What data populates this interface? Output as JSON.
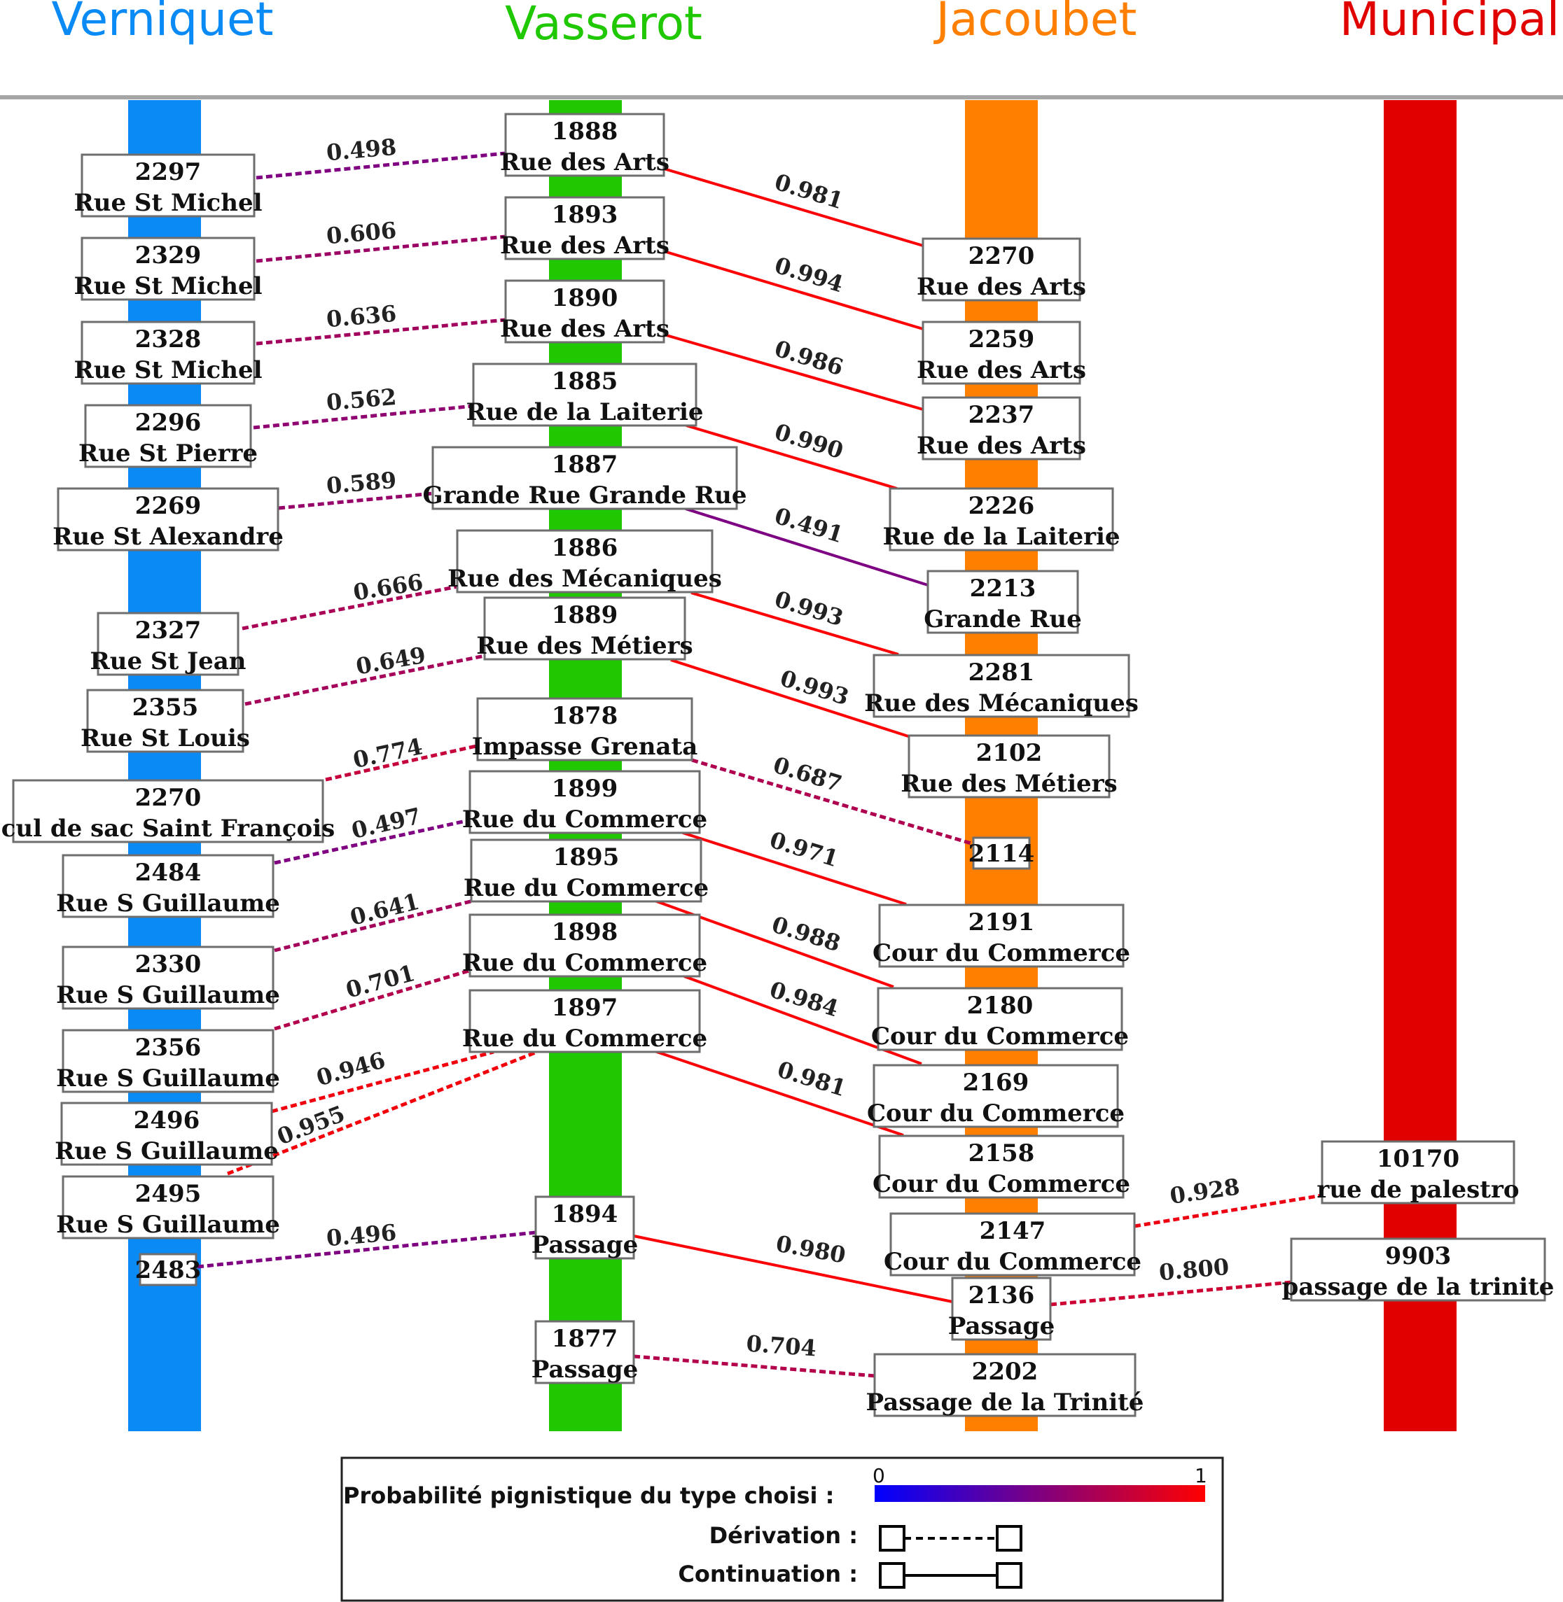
{
  "columns": [
    {
      "id": "verniquet",
      "label": "Verniquet",
      "color": "#0a8af5"
    },
    {
      "id": "vasserot",
      "label": "Vasserot",
      "color": "#1fc800"
    },
    {
      "id": "jacoubet",
      "label": "Jacoubet",
      "color": "#ff7f00"
    },
    {
      "id": "municipal",
      "label": "Municipal",
      "color": "#e00000"
    }
  ],
  "nodes": [
    {
      "id": "v2297",
      "column": "verniquet",
      "number": "2297",
      "name": "Rue St Michel"
    },
    {
      "id": "v2329",
      "column": "verniquet",
      "number": "2329",
      "name": "Rue St Michel"
    },
    {
      "id": "v2328",
      "column": "verniquet",
      "number": "2328",
      "name": "Rue St Michel"
    },
    {
      "id": "v2296",
      "column": "verniquet",
      "number": "2296",
      "name": "Rue St Pierre"
    },
    {
      "id": "v2269",
      "column": "verniquet",
      "number": "2269",
      "name": "Rue St Alexandre"
    },
    {
      "id": "v2327",
      "column": "verniquet",
      "number": "2327",
      "name": "Rue St Jean"
    },
    {
      "id": "v2355",
      "column": "verniquet",
      "number": "2355",
      "name": "Rue St Louis"
    },
    {
      "id": "v2270",
      "column": "verniquet",
      "number": "2270",
      "name": "cul de sac Saint François"
    },
    {
      "id": "v2484",
      "column": "verniquet",
      "number": "2484",
      "name": "Rue S Guillaume"
    },
    {
      "id": "v2330",
      "column": "verniquet",
      "number": "2330",
      "name": "Rue S Guillaume"
    },
    {
      "id": "v2356",
      "column": "verniquet",
      "number": "2356",
      "name": "Rue S Guillaume"
    },
    {
      "id": "v2496",
      "column": "verniquet",
      "number": "2496",
      "name": "Rue S Guillaume"
    },
    {
      "id": "v2495",
      "column": "verniquet",
      "number": "2495",
      "name": "Rue S Guillaume"
    },
    {
      "id": "v2483",
      "column": "verniquet",
      "number": "2483",
      "name": ""
    },
    {
      "id": "s1888",
      "column": "vasserot",
      "number": "1888",
      "name": "Rue des Arts"
    },
    {
      "id": "s1893",
      "column": "vasserot",
      "number": "1893",
      "name": "Rue des Arts"
    },
    {
      "id": "s1890",
      "column": "vasserot",
      "number": "1890",
      "name": "Rue des Arts"
    },
    {
      "id": "s1885",
      "column": "vasserot",
      "number": "1885",
      "name": "Rue de la Laiterie"
    },
    {
      "id": "s1887",
      "column": "vasserot",
      "number": "1887",
      "name": "Grande Rue Grande Rue"
    },
    {
      "id": "s1886",
      "column": "vasserot",
      "number": "1886",
      "name": "Rue des Mécaniques"
    },
    {
      "id": "s1889",
      "column": "vasserot",
      "number": "1889",
      "name": "Rue des Métiers"
    },
    {
      "id": "s1878",
      "column": "vasserot",
      "number": "1878",
      "name": "Impasse Grenata"
    },
    {
      "id": "s1899",
      "column": "vasserot",
      "number": "1899",
      "name": "Rue du Commerce"
    },
    {
      "id": "s1895",
      "column": "vasserot",
      "number": "1895",
      "name": "Rue du Commerce"
    },
    {
      "id": "s1898",
      "column": "vasserot",
      "number": "1898",
      "name": "Rue du Commerce"
    },
    {
      "id": "s1897",
      "column": "vasserot",
      "number": "1897",
      "name": "Rue du Commerce"
    },
    {
      "id": "s1894",
      "column": "vasserot",
      "number": "1894",
      "name": "Passage"
    },
    {
      "id": "s1877",
      "column": "vasserot",
      "number": "1877",
      "name": "Passage"
    },
    {
      "id": "j2270",
      "column": "jacoubet",
      "number": "2270",
      "name": "Rue des Arts"
    },
    {
      "id": "j2259",
      "column": "jacoubet",
      "number": "2259",
      "name": "Rue des Arts"
    },
    {
      "id": "j2237",
      "column": "jacoubet",
      "number": "2237",
      "name": "Rue des Arts"
    },
    {
      "id": "j2226",
      "column": "jacoubet",
      "number": "2226",
      "name": "Rue de la Laiterie"
    },
    {
      "id": "j2213",
      "column": "jacoubet",
      "number": "2213",
      "name": "Grande Rue"
    },
    {
      "id": "j2281",
      "column": "jacoubet",
      "number": "2281",
      "name": "Rue des Mécaniques"
    },
    {
      "id": "j2102",
      "column": "jacoubet",
      "number": "2102",
      "name": "Rue des Métiers"
    },
    {
      "id": "j2114",
      "column": "jacoubet",
      "number": "2114",
      "name": ""
    },
    {
      "id": "j2191",
      "column": "jacoubet",
      "number": "2191",
      "name": "Cour du Commerce"
    },
    {
      "id": "j2180",
      "column": "jacoubet",
      "number": "2180",
      "name": "Cour du Commerce"
    },
    {
      "id": "j2169",
      "column": "jacoubet",
      "number": "2169",
      "name": "Cour du Commerce"
    },
    {
      "id": "j2158",
      "column": "jacoubet",
      "number": "2158",
      "name": "Cour du Commerce"
    },
    {
      "id": "j2147",
      "column": "jacoubet",
      "number": "2147",
      "name": "Cour du Commerce"
    },
    {
      "id": "j2136",
      "column": "jacoubet",
      "number": "2136",
      "name": "Passage"
    },
    {
      "id": "j2202",
      "column": "jacoubet",
      "number": "2202",
      "name": "Passage de la Trinité"
    },
    {
      "id": "m10170",
      "column": "municipal",
      "number": "10170",
      "name": "rue de palestro"
    },
    {
      "id": "m9903",
      "column": "municipal",
      "number": "9903",
      "name": "passage de la trinite"
    }
  ],
  "edges": [
    {
      "from": "v2297",
      "to": "s1888",
      "value": 0.498,
      "label": "0.498",
      "type": "derivation"
    },
    {
      "from": "v2329",
      "to": "s1893",
      "value": 0.606,
      "label": "0.606",
      "type": "derivation"
    },
    {
      "from": "v2328",
      "to": "s1890",
      "value": 0.636,
      "label": "0.636",
      "type": "derivation"
    },
    {
      "from": "v2296",
      "to": "s1885",
      "value": 0.562,
      "label": "0.562",
      "type": "derivation"
    },
    {
      "from": "v2269",
      "to": "s1887",
      "value": 0.589,
      "label": "0.589",
      "type": "derivation"
    },
    {
      "from": "v2327",
      "to": "s1886",
      "value": 0.666,
      "label": "0.666",
      "type": "derivation"
    },
    {
      "from": "v2355",
      "to": "s1889",
      "value": 0.649,
      "label": "0.649",
      "type": "derivation"
    },
    {
      "from": "v2270",
      "to": "s1878",
      "value": 0.774,
      "label": "0.774",
      "type": "derivation"
    },
    {
      "from": "v2484",
      "to": "s1899",
      "value": 0.497,
      "label": "0.497",
      "type": "derivation"
    },
    {
      "from": "v2330",
      "to": "s1895",
      "value": 0.641,
      "label": "0.641",
      "type": "derivation"
    },
    {
      "from": "v2356",
      "to": "s1898",
      "value": 0.701,
      "label": "0.701",
      "type": "derivation"
    },
    {
      "from": "v2496",
      "to": "s1897",
      "value": 0.946,
      "label": "0.946",
      "type": "derivation"
    },
    {
      "from": "v2495",
      "to": "s1897",
      "value": 0.955,
      "label": "0.955",
      "type": "derivation"
    },
    {
      "from": "v2483",
      "to": "s1894",
      "value": 0.496,
      "label": "0.496",
      "type": "derivation"
    },
    {
      "from": "s1888",
      "to": "j2270",
      "value": 0.981,
      "label": "0.981",
      "type": "continuation"
    },
    {
      "from": "s1893",
      "to": "j2259",
      "value": 0.994,
      "label": "0.994",
      "type": "continuation"
    },
    {
      "from": "s1890",
      "to": "j2237",
      "value": 0.986,
      "label": "0.986",
      "type": "continuation"
    },
    {
      "from": "s1885",
      "to": "j2226",
      "value": 0.99,
      "label": "0.990",
      "type": "continuation"
    },
    {
      "from": "s1887",
      "to": "j2213",
      "value": 0.491,
      "label": "0.491",
      "type": "continuation"
    },
    {
      "from": "s1886",
      "to": "j2281",
      "value": 0.993,
      "label": "0.993",
      "type": "continuation"
    },
    {
      "from": "s1889",
      "to": "j2102",
      "value": 0.993,
      "label": "0.993",
      "type": "continuation"
    },
    {
      "from": "s1878",
      "to": "j2114",
      "value": 0.687,
      "label": "0.687",
      "type": "derivation"
    },
    {
      "from": "s1899",
      "to": "j2191",
      "value": 0.971,
      "label": "0.971",
      "type": "continuation"
    },
    {
      "from": "s1895",
      "to": "j2180",
      "value": 0.988,
      "label": "0.988",
      "type": "continuation"
    },
    {
      "from": "s1898",
      "to": "j2169",
      "value": 0.984,
      "label": "0.984",
      "type": "continuation"
    },
    {
      "from": "s1897",
      "to": "j2158",
      "value": 0.981,
      "label": "0.981",
      "type": "continuation"
    },
    {
      "from": "s1894",
      "to": "j2136",
      "value": 0.98,
      "label": "0.980",
      "type": "continuation"
    },
    {
      "from": "s1877",
      "to": "j2202",
      "value": 0.704,
      "label": "0.704",
      "type": "derivation"
    },
    {
      "from": "j2147",
      "to": "m10170",
      "value": 0.928,
      "label": "0.928",
      "type": "derivation"
    },
    {
      "from": "j2136",
      "to": "m9903",
      "value": 0.8,
      "label": "0.800",
      "type": "derivation"
    }
  ],
  "legend": {
    "probability_label": "Probabilité pignistique du type choisi :",
    "scale_min": "0",
    "scale_max": "1",
    "scale_color_start": "#0000ff",
    "scale_color_end": "#ff0000",
    "derivation_label": "Dérivation :",
    "continuation_label": "Continuation :"
  }
}
